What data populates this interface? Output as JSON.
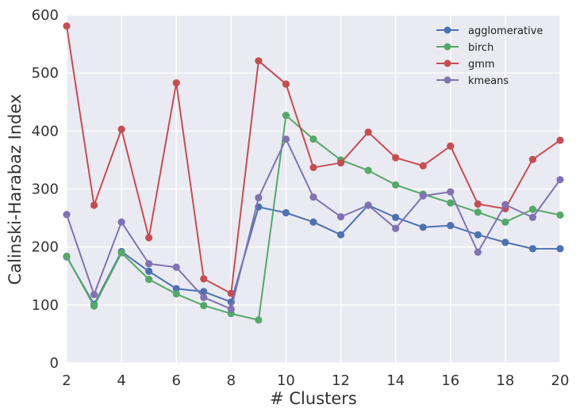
{
  "chart_data": {
    "type": "line",
    "title": "",
    "xlabel": "# Clusters",
    "ylabel": "Calinski-Harabaz Index",
    "x": [
      2,
      3,
      4,
      5,
      6,
      7,
      8,
      9,
      10,
      11,
      12,
      13,
      14,
      15,
      16,
      17,
      18,
      19,
      20
    ],
    "xlim": [
      2,
      20
    ],
    "ylim": [
      0,
      600
    ],
    "xticks": [
      2,
      4,
      6,
      8,
      10,
      12,
      14,
      16,
      18,
      20
    ],
    "yticks": [
      0,
      100,
      200,
      300,
      400,
      500,
      600
    ],
    "grid": true,
    "legend_position": "top-right",
    "background": "#eaeaf2",
    "series": [
      {
        "name": "agglomerative",
        "color": "#4c72b0",
        "values": [
          183,
          101,
          192,
          158,
          128,
          123,
          105,
          269,
          259,
          243,
          221,
          272,
          251,
          234,
          237,
          221,
          208,
          197,
          197
        ]
      },
      {
        "name": "birch",
        "color": "#55a868",
        "values": [
          184,
          98,
          190,
          144,
          119,
          99,
          85,
          74,
          427,
          386,
          350,
          332,
          307,
          291,
          276,
          260,
          243,
          265,
          255
        ]
      },
      {
        "name": "gmm",
        "color": "#c44e52",
        "values": [
          581,
          272,
          403,
          216,
          483,
          145,
          120,
          521,
          481,
          337,
          345,
          398,
          354,
          340,
          374,
          274,
          266,
          351,
          384
        ]
      },
      {
        "name": "kmeans",
        "color": "#8172b2",
        "values": [
          256,
          118,
          243,
          171,
          165,
          113,
          93,
          285,
          386,
          286,
          252,
          272,
          232,
          288,
          295,
          191,
          273,
          251,
          316
        ]
      }
    ]
  }
}
